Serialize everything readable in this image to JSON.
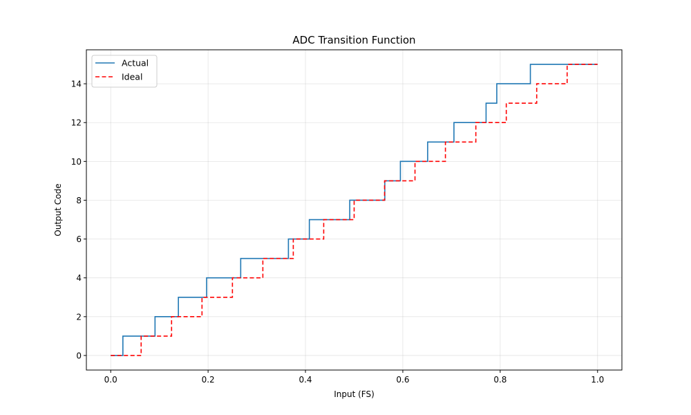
{
  "chart_data": {
    "type": "line",
    "title": "ADC Transition Function",
    "xlabel": "Input (FS)",
    "ylabel": "Output Code",
    "xlim": [
      -0.05,
      1.05
    ],
    "ylim": [
      -0.75,
      15.75
    ],
    "xticks": [
      0.0,
      0.2,
      0.4,
      0.6,
      0.8,
      1.0
    ],
    "xtick_labels": [
      "0.0",
      "0.2",
      "0.4",
      "0.6",
      "0.8",
      "1.0"
    ],
    "yticks": [
      0,
      2,
      4,
      6,
      8,
      10,
      12,
      14
    ],
    "ytick_labels": [
      "0",
      "2",
      "4",
      "6",
      "8",
      "10",
      "12",
      "14"
    ],
    "grid": true,
    "legend_position": "top-left",
    "series": [
      {
        "name": "Actual",
        "color": "#1f77b4",
        "style": "solid",
        "step": "post",
        "x": [
          0.0,
          0.025,
          0.091,
          0.139,
          0.197,
          0.267,
          0.365,
          0.408,
          0.491,
          0.563,
          0.595,
          0.651,
          0.705,
          0.771,
          0.793,
          0.862,
          1.0
        ],
        "y": [
          0,
          1,
          2,
          3,
          4,
          5,
          6,
          7,
          8,
          9,
          10,
          11,
          12,
          13,
          14,
          15,
          15
        ]
      },
      {
        "name": "Ideal",
        "color": "#ff0000",
        "style": "dashed",
        "step": "post",
        "x": [
          0.0,
          0.0625,
          0.125,
          0.1875,
          0.25,
          0.3125,
          0.375,
          0.4375,
          0.5,
          0.5625,
          0.625,
          0.6875,
          0.75,
          0.8125,
          0.875,
          0.9375,
          1.0
        ],
        "y": [
          0,
          1,
          2,
          3,
          4,
          5,
          6,
          7,
          8,
          9,
          10,
          11,
          12,
          13,
          14,
          15,
          15
        ]
      }
    ]
  }
}
